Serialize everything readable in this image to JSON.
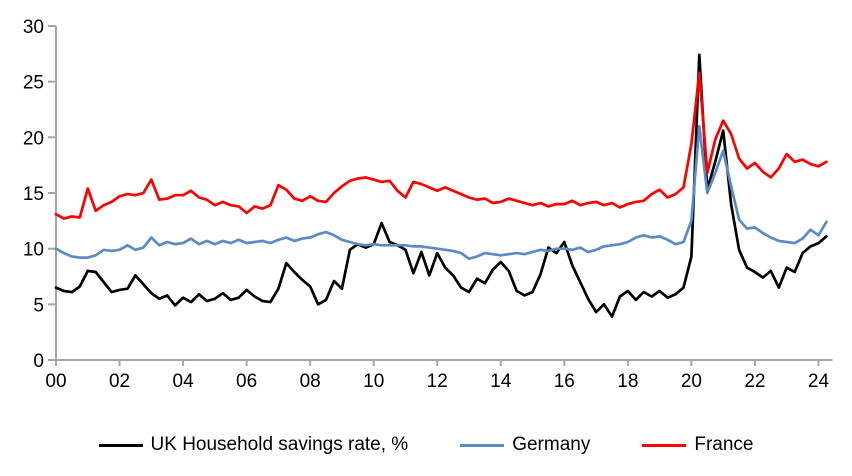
{
  "chart_data": {
    "type": "line",
    "title": "",
    "frequency": "quarterly",
    "x_start_year": 2000,
    "x_end": "2024Q2",
    "x_tick_labels": [
      "00",
      "02",
      "04",
      "06",
      "08",
      "10",
      "12",
      "14",
      "16",
      "18",
      "20",
      "22",
      "24"
    ],
    "y_ticks": [
      0,
      5,
      10,
      15,
      20,
      25,
      30
    ],
    "ylim": [
      0,
      30
    ],
    "grid": false,
    "legend_position": "bottom",
    "axis_color": "#a6a6a6",
    "series": [
      {
        "name": "UK Household savings rate, %",
        "color": "#000000",
        "values": [
          6.5,
          6.2,
          6.1,
          6.6,
          8.0,
          7.9,
          7.0,
          6.1,
          6.3,
          6.4,
          7.6,
          6.8,
          6.0,
          5.5,
          5.8,
          4.9,
          5.6,
          5.2,
          5.9,
          5.3,
          5.5,
          6.0,
          5.4,
          5.6,
          6.3,
          5.7,
          5.3,
          5.2,
          6.4,
          8.7,
          7.9,
          7.2,
          6.6,
          5.0,
          5.4,
          7.1,
          6.4,
          9.9,
          10.4,
          10.1,
          10.4,
          12.3,
          10.6,
          10.3,
          9.9,
          7.8,
          9.7,
          7.6,
          9.6,
          8.3,
          7.6,
          6.5,
          6.1,
          7.3,
          6.9,
          8.1,
          8.8,
          8.0,
          6.2,
          5.8,
          6.1,
          7.7,
          10.1,
          9.6,
          10.6,
          8.5,
          7.0,
          5.5,
          4.3,
          5.0,
          3.9,
          5.7,
          6.2,
          5.4,
          6.1,
          5.7,
          6.2,
          5.6,
          5.9,
          6.5,
          9.3,
          27.4,
          15.3,
          17.8,
          20.6,
          14.0,
          9.9,
          8.3,
          7.9,
          7.4,
          8.0,
          6.5,
          8.3,
          7.9,
          9.6,
          10.2,
          10.5,
          11.1
        ]
      },
      {
        "name": "Germany",
        "color": "#5b8ac5",
        "values": [
          10.0,
          9.6,
          9.3,
          9.2,
          9.2,
          9.4,
          9.9,
          9.8,
          9.9,
          10.3,
          9.9,
          10.1,
          11.0,
          10.3,
          10.6,
          10.4,
          10.5,
          10.9,
          10.4,
          10.7,
          10.4,
          10.7,
          10.5,
          10.8,
          10.5,
          10.6,
          10.7,
          10.5,
          10.8,
          11.0,
          10.7,
          10.9,
          11.0,
          11.3,
          11.5,
          11.2,
          10.8,
          10.6,
          10.4,
          10.3,
          10.4,
          10.3,
          10.3,
          10.3,
          10.3,
          10.2,
          10.2,
          10.1,
          10.0,
          9.9,
          9.8,
          9.6,
          9.1,
          9.3,
          9.6,
          9.5,
          9.4,
          9.5,
          9.6,
          9.5,
          9.7,
          9.9,
          9.8,
          10.0,
          10.0,
          9.9,
          10.1,
          9.7,
          9.9,
          10.2,
          10.3,
          10.4,
          10.6,
          11.0,
          11.2,
          11.0,
          11.1,
          10.8,
          10.4,
          10.6,
          12.5,
          21.0,
          15.0,
          16.8,
          18.8,
          15.6,
          12.6,
          11.8,
          11.9,
          11.4,
          11.0,
          10.7,
          10.6,
          10.5,
          10.9,
          11.7,
          11.2,
          12.4
        ]
      },
      {
        "name": "France",
        "color": "#fe0000",
        "values": [
          13.1,
          12.7,
          12.9,
          12.8,
          15.4,
          13.4,
          13.9,
          14.2,
          14.7,
          14.9,
          14.8,
          15.0,
          16.2,
          14.4,
          14.5,
          14.8,
          14.8,
          15.2,
          14.6,
          14.4,
          13.9,
          14.2,
          13.9,
          13.8,
          13.2,
          13.8,
          13.6,
          13.9,
          15.7,
          15.3,
          14.5,
          14.3,
          14.7,
          14.3,
          14.2,
          15.0,
          15.6,
          16.1,
          16.3,
          16.4,
          16.2,
          16.0,
          16.1,
          15.2,
          14.6,
          16.0,
          15.8,
          15.5,
          15.2,
          15.5,
          15.2,
          14.9,
          14.6,
          14.4,
          14.5,
          14.1,
          14.2,
          14.5,
          14.3,
          14.1,
          13.9,
          14.1,
          13.8,
          14.0,
          14.0,
          14.3,
          13.9,
          14.1,
          14.2,
          13.9,
          14.1,
          13.7,
          14.0,
          14.2,
          14.3,
          14.9,
          15.3,
          14.6,
          14.9,
          15.5,
          19.4,
          25.8,
          16.8,
          19.8,
          21.5,
          20.3,
          18.1,
          17.2,
          17.7,
          16.9,
          16.4,
          17.2,
          18.5,
          17.8,
          18.0,
          17.6,
          17.4,
          17.8
        ]
      }
    ]
  }
}
